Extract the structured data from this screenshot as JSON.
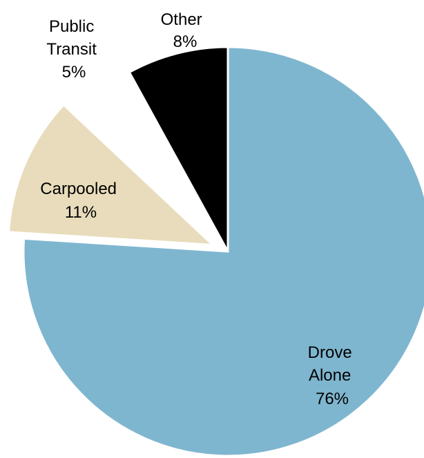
{
  "chart_data": {
    "type": "pie",
    "title": "",
    "slices": [
      {
        "name": "Drove Alone",
        "value": 76,
        "label": "76%",
        "lines": [
          "Drove",
          "Alone",
          "76%"
        ],
        "color": "#7fb6cf",
        "exploded": false
      },
      {
        "name": "Carpooled",
        "value": 11,
        "label": "11%",
        "lines": [
          "Carpooled",
          "11%"
        ],
        "color": "#e8dcbc",
        "exploded": true
      },
      {
        "name": "Public Transit",
        "value": 5,
        "label": "5%",
        "lines": [
          "Public",
          "Transit",
          "5%"
        ],
        "color": "#ffffff",
        "exploded": true
      },
      {
        "name": "Other",
        "value": 8,
        "label": "8%",
        "lines": [
          "Other",
          "8%"
        ],
        "color": "#000000",
        "exploded": false
      }
    ],
    "legend": "none"
  }
}
